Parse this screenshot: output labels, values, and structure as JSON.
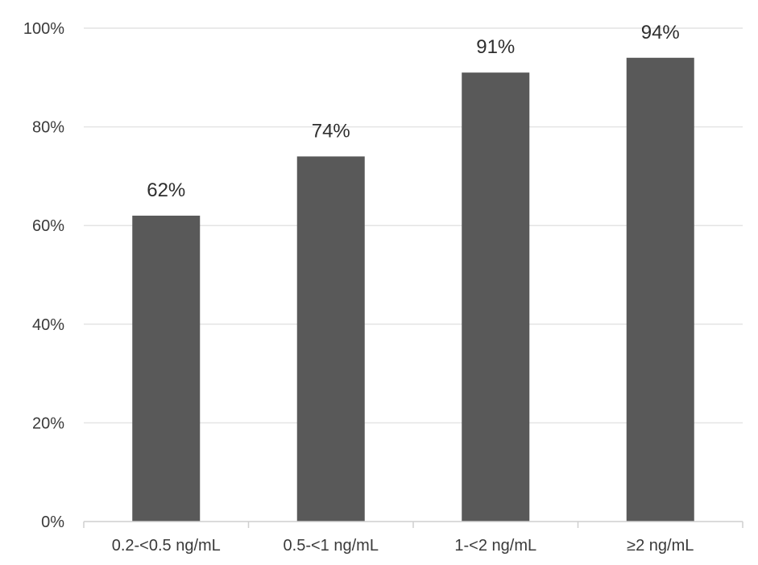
{
  "chart_data": {
    "type": "bar",
    "title": "",
    "xlabel": "",
    "ylabel": "",
    "categories": [
      "0.2-<0.5 ng/mL",
      "0.5-<1 ng/mL",
      "1-<2 ng/mL",
      "≥2 ng/mL"
    ],
    "values": [
      62,
      74,
      91,
      94
    ],
    "data_labels": [
      "62%",
      "74%",
      "91%",
      "94%"
    ],
    "ylim": [
      0,
      100
    ],
    "y_ticks": [
      0,
      20,
      40,
      60,
      80,
      100
    ],
    "y_tick_labels": [
      "0%",
      "20%",
      "40%",
      "60%",
      "80%",
      "100%"
    ],
    "grid": true,
    "legend": "none",
    "colors": {
      "bar": "#595959",
      "grid": "#e4e4e4",
      "text": "#3a3a3a"
    }
  }
}
